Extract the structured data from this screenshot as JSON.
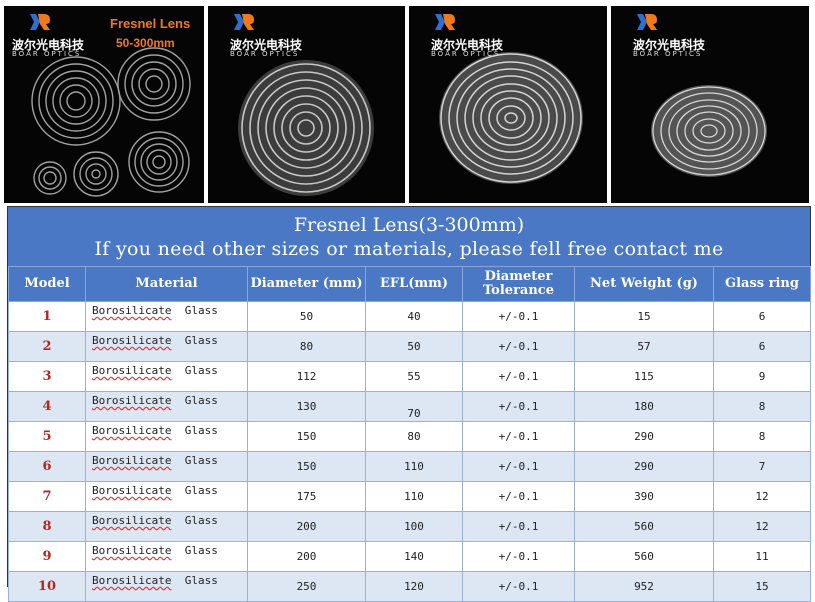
{
  "photos": {
    "brand_cn": "波尔光电科技",
    "brand_en": "BOAR OPTICS",
    "panel1_title": "Fresnel Lens",
    "panel1_subtitle": "50-300mm"
  },
  "table": {
    "title": "Fresnel Lens(3-300mm)",
    "subtitle": "If you need other sizes or materials, please fell free contact me",
    "headers": {
      "model": "Model",
      "material": "Material",
      "diameter": "Diameter (mm)",
      "efl": "EFL(mm)",
      "tol_line1": "Diameter",
      "tol_line2": "Tolerance",
      "weight": "Net Weight (g)",
      "ring": "Glass ring"
    },
    "rows": [
      {
        "model": "1",
        "mat_a": "Borosilicate",
        "mat_b": "Glass",
        "diameter": "50",
        "efl": "40",
        "tol": "+/-0.1",
        "weight": "15",
        "ring": "6"
      },
      {
        "model": "2",
        "mat_a": "Borosilicate",
        "mat_b": "Glass",
        "diameter": "80",
        "efl": "50",
        "tol": "+/-0.1",
        "weight": "57",
        "ring": "6"
      },
      {
        "model": "3",
        "mat_a": "Borosilicate",
        "mat_b": "Glass",
        "diameter": "112",
        "efl": "55",
        "tol": "+/-0.1",
        "weight": "115",
        "ring": "9"
      },
      {
        "model": "4",
        "mat_a": "Borosilicate",
        "mat_b": "Glass",
        "diameter": "130",
        "efl": "70",
        "tol": "+/-0.1",
        "weight": "180",
        "ring": "8"
      },
      {
        "model": "5",
        "mat_a": "Borosilicate",
        "mat_b": "Glass",
        "diameter": "150",
        "efl": "80",
        "tol": "+/-0.1",
        "weight": "290",
        "ring": "8"
      },
      {
        "model": "6",
        "mat_a": "Borosilicate",
        "mat_b": "Glass",
        "diameter": "150",
        "efl": "110",
        "tol": "+/-0.1",
        "weight": "290",
        "ring": "7"
      },
      {
        "model": "7",
        "mat_a": "Borosilicate",
        "mat_b": "Glass",
        "diameter": "175",
        "efl": "110",
        "tol": "+/-0.1",
        "weight": "390",
        "ring": "12"
      },
      {
        "model": "8",
        "mat_a": "Borosilicate",
        "mat_b": "Glass",
        "diameter": "200",
        "efl": "100",
        "tol": "+/-0.1",
        "weight": "560",
        "ring": "12"
      },
      {
        "model": "9",
        "mat_a": "Borosilicate",
        "mat_b": "Glass",
        "diameter": "200",
        "efl": "140",
        "tol": "+/-0.1",
        "weight": "560",
        "ring": "11"
      },
      {
        "model": "10",
        "mat_a": "Borosilicate",
        "mat_b": "Glass",
        "diameter": "250",
        "efl": "120",
        "tol": "+/-0.1",
        "weight": "952",
        "ring": "15"
      }
    ]
  }
}
